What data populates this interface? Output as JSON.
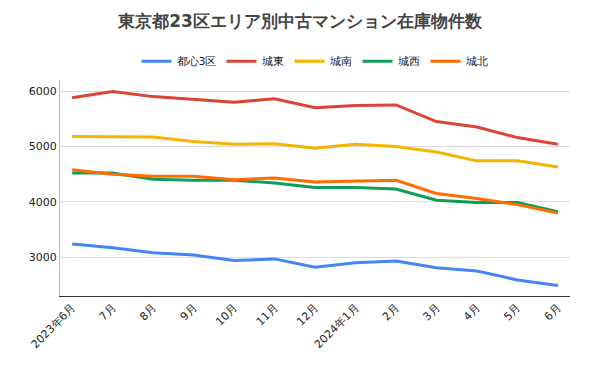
{
  "chart_data": {
    "type": "line",
    "title": "東京都23区エリア別中古マンション在庫物件数",
    "categories": [
      "2023年6月",
      "7月",
      "8月",
      "9月",
      "10月",
      "11月",
      "12月",
      "2024年1月",
      "2月",
      "3月",
      "4月",
      "5月",
      "6月"
    ],
    "series": [
      {
        "name": "都心3区",
        "color": "#4285F4",
        "values": [
          3240,
          3170,
          3080,
          3040,
          2940,
          2970,
          2820,
          2900,
          2930,
          2810,
          2750,
          2590,
          2490
        ]
      },
      {
        "name": "城東",
        "color": "#DB4437",
        "values": [
          5880,
          5990,
          5900,
          5850,
          5800,
          5860,
          5700,
          5740,
          5750,
          5450,
          5350,
          5160,
          5040
        ]
      },
      {
        "name": "城南",
        "color": "#F4B400",
        "values": [
          5180,
          5170,
          5170,
          5090,
          5040,
          5050,
          4970,
          5040,
          5000,
          4900,
          4740,
          4740,
          4630
        ]
      },
      {
        "name": "城西",
        "color": "#0F9D58",
        "values": [
          4520,
          4520,
          4410,
          4390,
          4390,
          4340,
          4260,
          4260,
          4230,
          4030,
          3990,
          3990,
          3820
        ]
      },
      {
        "name": "城北",
        "color": "#FF6D01",
        "values": [
          4580,
          4500,
          4460,
          4460,
          4400,
          4430,
          4360,
          4370,
          4390,
          4150,
          4060,
          3950,
          3800
        ]
      }
    ],
    "ylim": [
      2300,
      6200
    ],
    "yticks": [
      3000,
      4000,
      5000,
      6000
    ],
    "grid": true,
    "legend": "top"
  }
}
